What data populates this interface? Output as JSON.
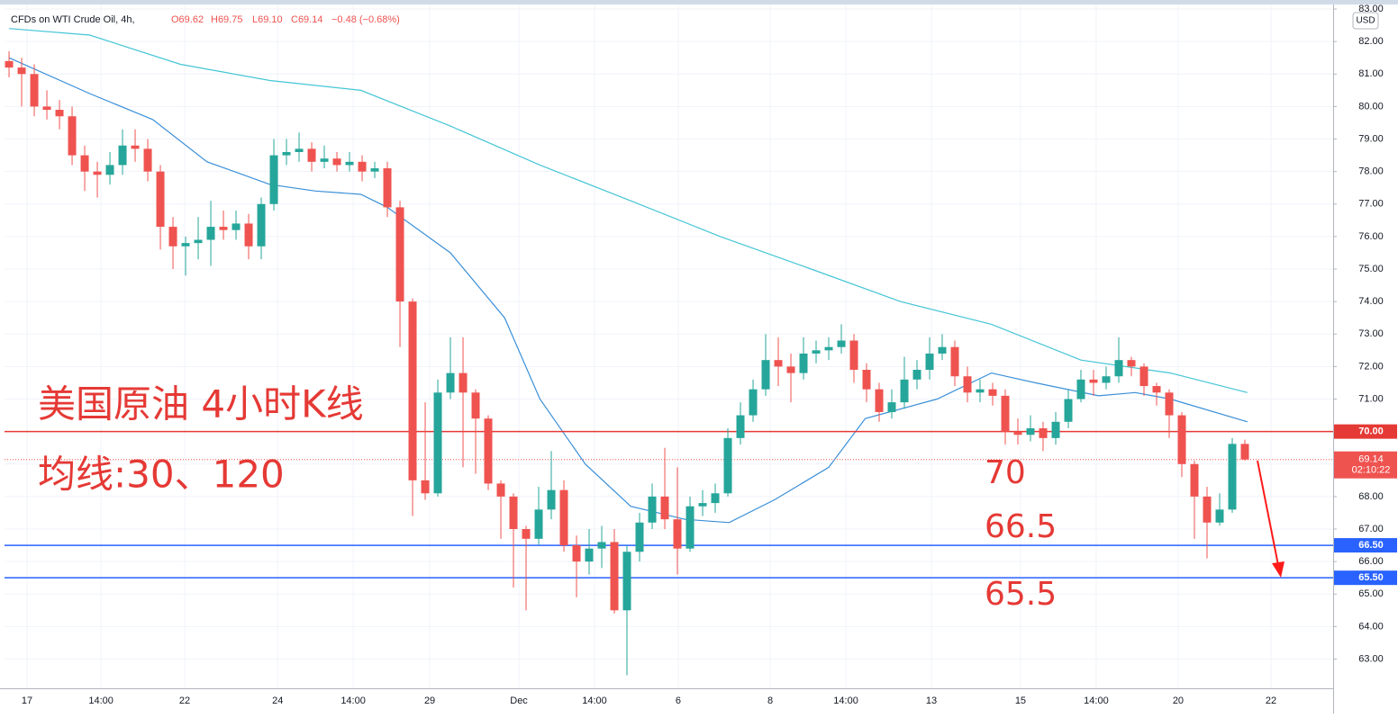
{
  "header": {
    "symbol": "CFDs on WTI Crude Oil, 4h,",
    "open": "O69.62",
    "high": "H69.75",
    "low": "L69.10",
    "close": "C69.14",
    "change": "−0.48 (−0.68%)"
  },
  "chart_data": {
    "type": "candlestick",
    "currency": "USD",
    "annotations": [
      "美国原油 4小时K线",
      "均线:30、120",
      "70",
      "66.5",
      "65.5"
    ],
    "x": [
      0,
      1,
      2,
      3,
      4,
      5,
      6,
      7,
      8,
      9,
      10,
      11,
      12,
      13,
      14,
      15,
      16,
      17,
      18,
      19,
      20,
      21,
      22,
      23,
      24,
      25,
      26,
      27,
      28,
      29,
      30,
      31,
      32,
      33,
      34,
      35,
      36,
      37,
      38,
      39,
      40,
      41,
      42,
      43,
      44,
      45,
      46,
      47,
      48,
      49,
      50,
      51,
      52,
      53,
      54,
      55,
      56,
      57,
      58,
      59,
      60,
      61,
      62,
      63,
      64,
      65,
      66,
      67,
      68,
      69,
      70,
      71,
      72,
      73,
      74,
      75,
      76,
      77,
      78,
      79,
      80,
      81,
      82,
      83,
      84,
      85,
      86,
      87,
      88,
      89,
      90,
      91,
      92,
      93,
      94,
      95,
      96,
      97,
      98
    ],
    "open": [
      81.4,
      81.2,
      81.0,
      80.0,
      79.9,
      79.7,
      78.5,
      78.0,
      77.9,
      78.2,
      78.8,
      78.7,
      78.0,
      76.3,
      75.7,
      75.8,
      75.9,
      76.3,
      76.2,
      76.4,
      75.7,
      77.0,
      78.5,
      78.6,
      78.7,
      78.3,
      78.4,
      78.2,
      78.3,
      78.0,
      78.1,
      76.9,
      74.0,
      68.5,
      68.1,
      71.2,
      71.8,
      71.2,
      70.4,
      68.4,
      68.0,
      67.0,
      66.7,
      67.6,
      68.2,
      66.5,
      66.0,
      66.4,
      66.6,
      64.5,
      66.3,
      67.2,
      68.0,
      67.3,
      66.4,
      67.7,
      67.8,
      68.1,
      69.8,
      70.5,
      71.3,
      72.2,
      72.0,
      71.8,
      72.4,
      72.5,
      72.6,
      72.8,
      71.9,
      71.3,
      70.6,
      70.9,
      71.6,
      71.9,
      72.4,
      72.6,
      71.7,
      71.2,
      71.3,
      71.1,
      70.0,
      69.9,
      70.1,
      69.8,
      70.3,
      71.0,
      71.6,
      71.5,
      71.7,
      72.2,
      72.0,
      71.4,
      71.2,
      70.5,
      69.0,
      68.0,
      67.2,
      67.6,
      69.62
    ],
    "high": [
      81.7,
      81.5,
      81.3,
      80.5,
      80.2,
      80.0,
      78.8,
      78.3,
      78.6,
      79.3,
      79.3,
      79.0,
      78.2,
      76.6,
      76.0,
      76.6,
      77.1,
      76.8,
      76.8,
      76.7,
      77.2,
      79.0,
      79.0,
      79.2,
      78.9,
      78.8,
      78.6,
      78.6,
      78.5,
      78.3,
      78.3,
      77.1,
      74.1,
      70.9,
      71.6,
      72.9,
      72.9,
      71.3,
      70.5,
      68.5,
      68.1,
      67.1,
      68.3,
      69.4,
      68.5,
      66.8,
      67.0,
      67.1,
      67.0,
      66.5,
      67.5,
      68.4,
      69.5,
      68.9,
      68.0,
      68.2,
      68.4,
      70.1,
      70.9,
      71.6,
      73.0,
      72.9,
      72.4,
      72.9,
      72.8,
      72.9,
      73.3,
      73.0,
      72.1,
      71.5,
      71.3,
      72.3,
      72.2,
      72.9,
      73.0,
      72.8,
      72.0,
      71.6,
      71.5,
      71.3,
      70.4,
      70.5,
      70.3,
      70.6,
      71.3,
      71.9,
      71.9,
      72.0,
      72.9,
      72.3,
      72.1,
      71.5,
      71.3,
      70.6,
      69.1,
      68.3,
      68.1,
      69.8,
      69.75
    ],
    "low": [
      80.9,
      80.0,
      79.7,
      79.6,
      79.3,
      78.2,
      77.4,
      77.2,
      77.6,
      77.9,
      78.3,
      77.7,
      75.6,
      75.0,
      74.8,
      75.3,
      75.1,
      75.9,
      75.9,
      75.3,
      75.3,
      76.8,
      78.2,
      78.3,
      78.0,
      78.1,
      78.0,
      78.0,
      77.7,
      77.8,
      76.6,
      72.6,
      67.4,
      67.9,
      68.0,
      71.0,
      68.9,
      68.7,
      68.2,
      66.7,
      65.2,
      64.5,
      66.5,
      67.3,
      66.3,
      64.9,
      65.6,
      65.8,
      64.4,
      62.5,
      66.0,
      67.0,
      67.0,
      65.6,
      66.3,
      67.4,
      67.5,
      68.0,
      69.6,
      70.3,
      71.1,
      71.4,
      70.9,
      71.6,
      72.1,
      72.2,
      72.4,
      71.5,
      70.9,
      70.3,
      70.4,
      70.7,
      71.3,
      71.6,
      72.2,
      71.4,
      70.9,
      70.9,
      70.8,
      69.6,
      69.6,
      69.7,
      69.4,
      69.6,
      70.1,
      70.9,
      71.1,
      71.3,
      71.5,
      71.7,
      71.1,
      70.8,
      69.8,
      68.6,
      66.7,
      66.1,
      67.1,
      67.5,
      69.1
    ],
    "close": [
      81.2,
      81.0,
      80.0,
      79.9,
      79.7,
      78.5,
      78.0,
      77.9,
      78.2,
      78.8,
      78.7,
      78.0,
      76.3,
      75.7,
      75.8,
      75.9,
      76.3,
      76.2,
      76.4,
      75.7,
      77.0,
      78.5,
      78.6,
      78.7,
      78.3,
      78.4,
      78.2,
      78.3,
      78.0,
      78.1,
      76.9,
      74.0,
      68.5,
      68.1,
      71.2,
      71.8,
      71.2,
      70.4,
      68.4,
      68.0,
      67.0,
      66.7,
      67.6,
      68.2,
      66.5,
      66.0,
      66.4,
      66.6,
      64.5,
      66.3,
      67.2,
      68.0,
      67.3,
      66.4,
      67.7,
      67.8,
      68.1,
      69.8,
      70.5,
      71.3,
      72.2,
      72.0,
      71.8,
      72.4,
      72.5,
      72.6,
      72.8,
      71.9,
      71.3,
      70.6,
      70.9,
      71.6,
      71.9,
      72.4,
      72.6,
      71.7,
      71.2,
      71.3,
      71.1,
      70.0,
      69.9,
      70.1,
      69.8,
      70.3,
      71.0,
      71.6,
      71.5,
      71.7,
      72.2,
      72.0,
      71.4,
      71.2,
      70.5,
      69.0,
      68.0,
      67.2,
      67.6,
      69.62,
      69.14
    ],
    "up_color": "#26a69a",
    "down_color": "#ef5350",
    "series": [
      {
        "color": "#45c5d6",
        "x": [
          0,
          6.4,
          13.6,
          20.7,
          27.9,
          35,
          42.1,
          49.3,
          56.4,
          63.6,
          70.7,
          77.9,
          85,
          92.1,
          98.2
        ],
        "values": [
          82.4,
          82.2,
          81.3,
          80.8,
          80.5,
          79.4,
          78.2,
          77.1,
          76.0,
          75.0,
          74.0,
          73.3,
          72.2,
          71.8,
          71.2
        ]
      },
      {
        "color": "#3a8fd8",
        "x": [
          0,
          6.4,
          11.4,
          15.7,
          20.7,
          24.3,
          27.9,
          30,
          35,
          39.3,
          42.1,
          45.7,
          49.3,
          53.6,
          57.1,
          60.7,
          65,
          67.9,
          73.6,
          77.9,
          81.4,
          86.4,
          89.3,
          92.1,
          98.2
        ],
        "values": [
          81.5,
          80.4,
          79.6,
          78.3,
          77.6,
          77.4,
          77.3,
          76.9,
          75.5,
          73.5,
          71.0,
          69.0,
          67.7,
          67.3,
          67.2,
          67.9,
          68.9,
          70.4,
          71.0,
          71.8,
          71.5,
          71.1,
          71.2,
          71.0,
          70.3
        ]
      }
    ],
    "hlines": [
      {
        "value": 70,
        "label": "70.00",
        "color": "#e53935"
      },
      {
        "value": 66.5,
        "label": "66.50",
        "color": "#2962ff"
      },
      {
        "value": 65.5,
        "label": "65.50",
        "color": "#2962ff"
      }
    ],
    "last_price": {
      "value": 69.14,
      "label": "69.14",
      "countdown": "02:10:22",
      "color": "#ef5350"
    },
    "xlim": [
      -0.36,
      105
    ],
    "ylim": [
      62.1,
      83.14
    ],
    "xticks": [
      {
        "value": 1.43,
        "label": "17"
      },
      {
        "value": 7.29,
        "label": "14:00"
      },
      {
        "value": 13.93,
        "label": "22"
      },
      {
        "value": 21.3,
        "label": "24"
      },
      {
        "value": 27.29,
        "label": "14:00"
      },
      {
        "value": 33.36,
        "label": "29"
      },
      {
        "value": 40.43,
        "label": "Dec"
      },
      {
        "value": 46.43,
        "label": "14:00"
      },
      {
        "value": 53.07,
        "label": "6"
      },
      {
        "value": 60.36,
        "label": "8"
      },
      {
        "value": 66.36,
        "label": "14:00"
      },
      {
        "value": 73.14,
        "label": "13"
      },
      {
        "value": 80.21,
        "label": "15"
      },
      {
        "value": 86.21,
        "label": "14:00"
      },
      {
        "value": 92.71,
        "label": "20"
      },
      {
        "value": 100.07,
        "label": "22"
      }
    ],
    "yticks": [
      {
        "value": 63,
        "label": "63.00"
      },
      {
        "value": 64,
        "label": "64.00"
      },
      {
        "value": 65,
        "label": "65.00"
      },
      {
        "value": 66,
        "label": "66.00"
      },
      {
        "value": 67,
        "label": "67.00"
      },
      {
        "value": 68,
        "label": "68.00"
      },
      {
        "value": 69,
        "label": "69.00"
      },
      {
        "value": 70,
        "label": "70.00"
      },
      {
        "value": 71,
        "label": "71.00"
      },
      {
        "value": 72,
        "label": "72.00"
      },
      {
        "value": 73,
        "label": "73.00"
      },
      {
        "value": 74,
        "label": "74.00"
      },
      {
        "value": 75,
        "label": "75.00"
      },
      {
        "value": 76,
        "label": "76.00"
      },
      {
        "value": 77,
        "label": "77.00"
      },
      {
        "value": 78,
        "label": "78.00"
      },
      {
        "value": 79,
        "label": "79.00"
      },
      {
        "value": 80,
        "label": "80.00"
      },
      {
        "value": 81,
        "label": "81.00"
      },
      {
        "value": 82,
        "label": "82.00"
      },
      {
        "value": 83,
        "label": "83.00"
      }
    ]
  }
}
